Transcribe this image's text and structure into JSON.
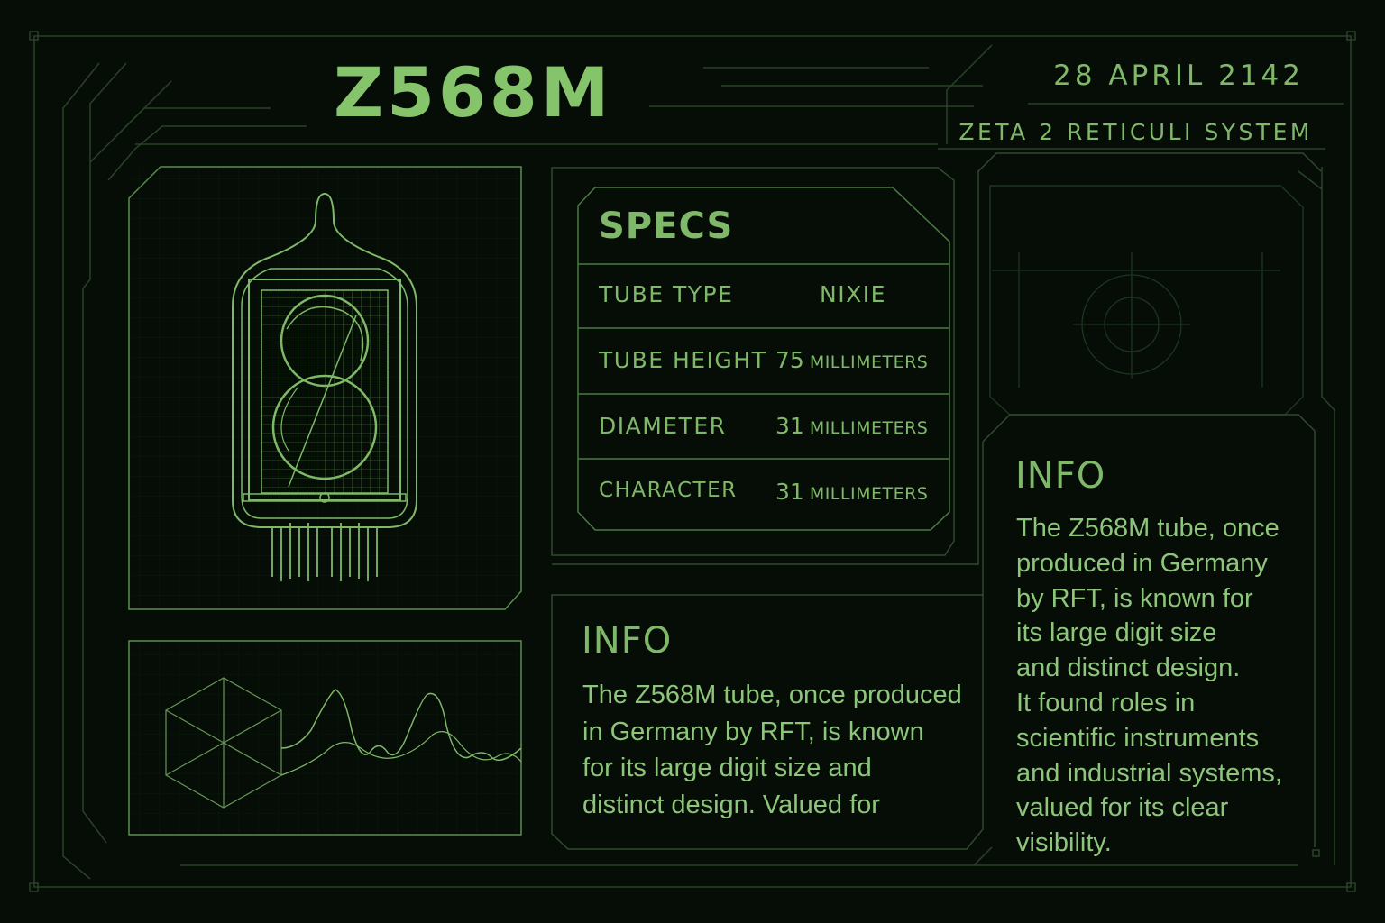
{
  "header": {
    "title": "Z568M",
    "date": "28 APRIL 2142",
    "system": "ZETA 2 RETICULI SYSTEM"
  },
  "specs": {
    "title": "SPECS",
    "rows": [
      {
        "label": "TUBE TYPE",
        "value": "NIXIE",
        "unit": ""
      },
      {
        "label": "TUBE HEIGHT",
        "value": "75",
        "unit": "MILLIMETERS"
      },
      {
        "label": "DIAMETER",
        "value": "31",
        "unit": "MILLIMETERS"
      },
      {
        "label": "CHARACTER",
        "value": "31",
        "unit": "MILLIMETERS"
      }
    ]
  },
  "info_bottom": {
    "title": "INFO",
    "text": "The Z568M tube, once produced\nin Germany by RFT, is known\nfor its large digit size and\ndistinct design. Valued for"
  },
  "info_right": {
    "title": "INFO",
    "text": "The Z568M tube, once\nproduced in Germany\nby RFT, is known for\nits large digit size\nand distinct design.\nIt found roles in\nscientific instruments\nand industrial systems,\nvalued for its clear\nvisibility."
  },
  "icons": [
    "nixie-tube-illustration",
    "wireframe-cube-icon",
    "waveform-graphic",
    "faded-sketch-graphic"
  ],
  "colors": {
    "accent": "#7fb868",
    "line": "#2f4a2c",
    "background": "#050d06"
  }
}
